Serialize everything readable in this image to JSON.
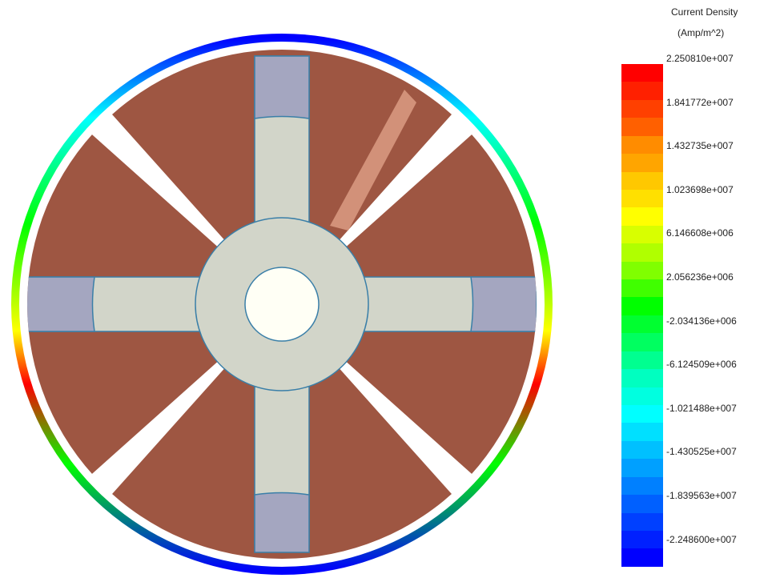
{
  "legend": {
    "title_line1": "Current Density",
    "title_line2": "(Amp/m^2)",
    "ticks": [
      "2.250810e+007",
      "1.841772e+007",
      "1.432735e+007",
      "1.023698e+007",
      "6.146608e+006",
      "2.056236e+006",
      "-2.034136e+006",
      "-6.124509e+006",
      "-1.021488e+007",
      "-1.430525e+007",
      "-1.839563e+007",
      "-2.248600e+007"
    ],
    "colors": [
      "#ff0000",
      "#ff2000",
      "#ff4000",
      "#ff6000",
      "#ff8c00",
      "#ffa500",
      "#ffc800",
      "#ffe000",
      "#ffff00",
      "#d8ff00",
      "#b0ff00",
      "#80ff00",
      "#40ff00",
      "#00ff00",
      "#00ff30",
      "#00ff60",
      "#00ff90",
      "#00ffc0",
      "#00ffe0",
      "#00ffff",
      "#00e0ff",
      "#00c0ff",
      "#00a0ff",
      "#0080ff",
      "#0060ff",
      "#0040ff",
      "#0020ff",
      "#0000ff"
    ]
  },
  "colors": {
    "segment": "#9e5642",
    "hub": "#d2d5c9",
    "slot": "#a4a6c0",
    "outline": "#3a7fa8"
  }
}
